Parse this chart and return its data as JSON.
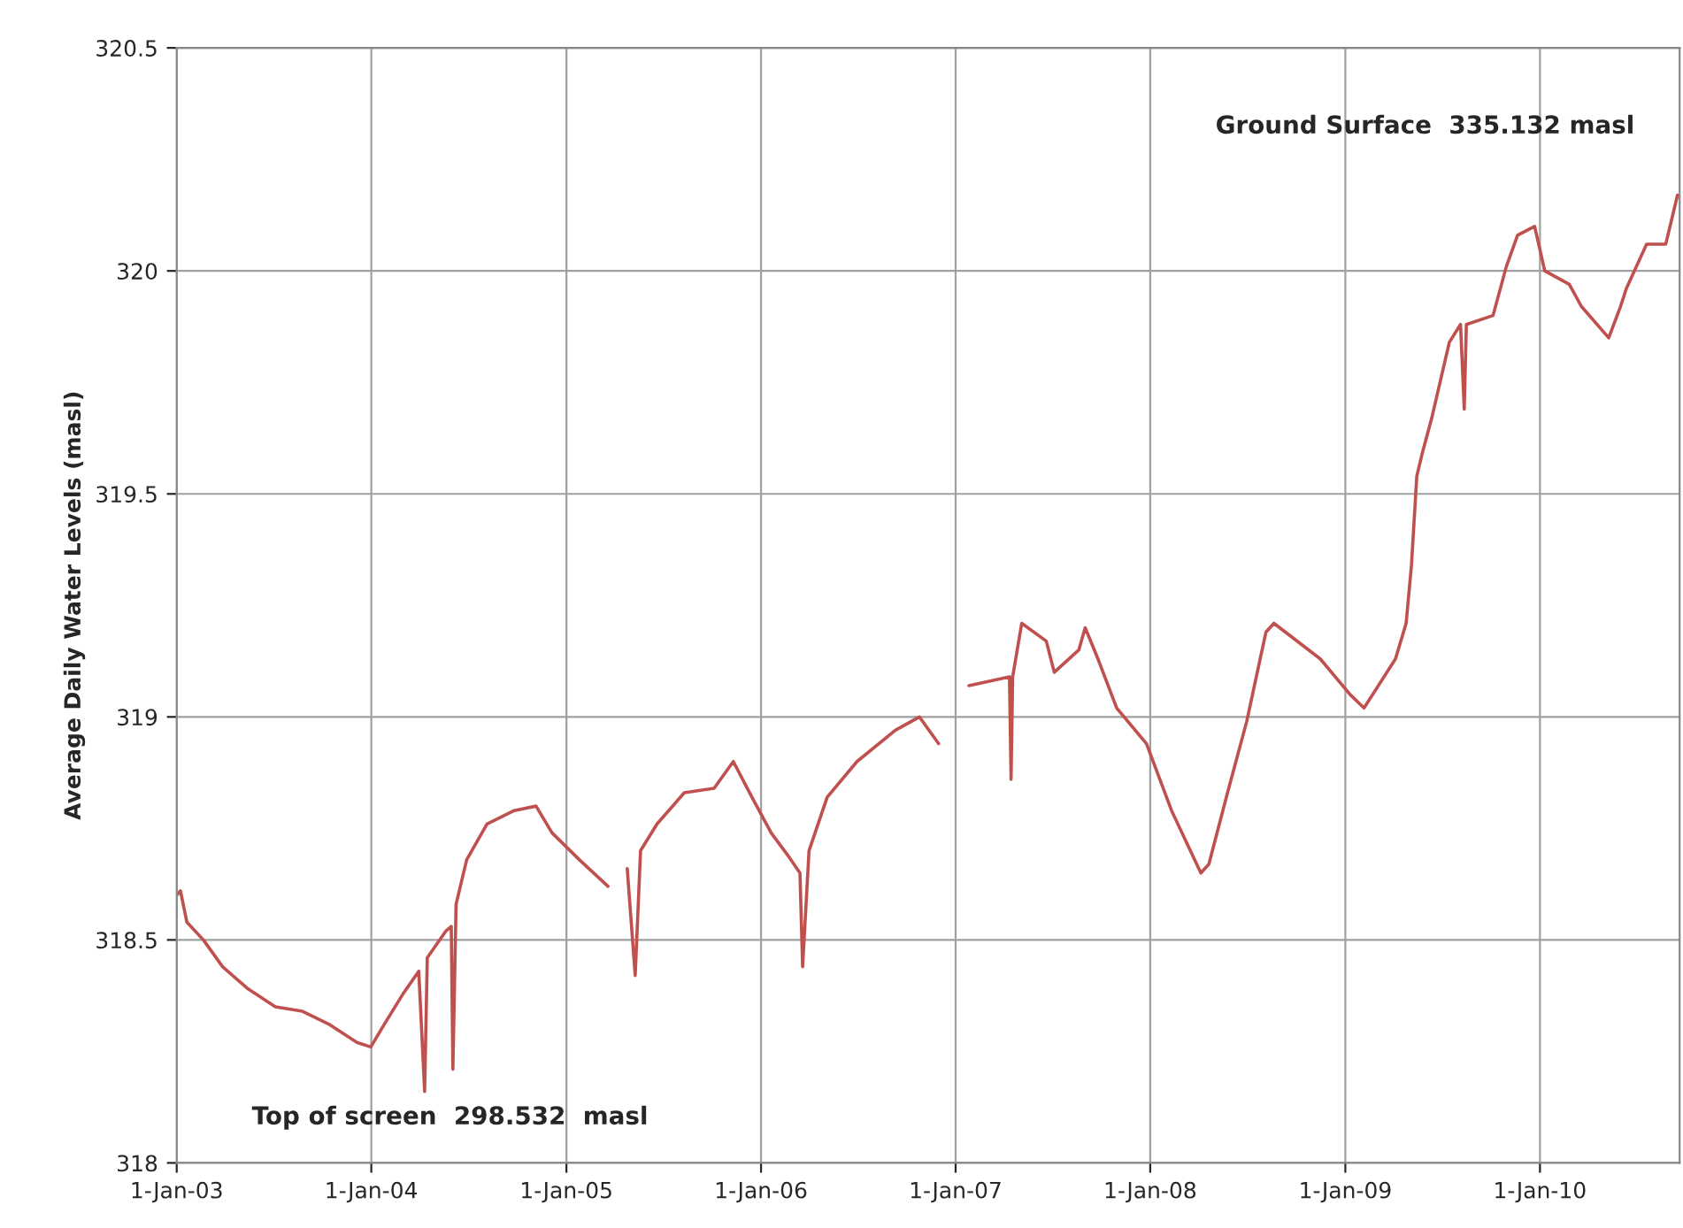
{
  "chart_data": {
    "type": "line",
    "ylabel": "Average Daily Water Levels (masl)",
    "annotations": [
      "Top of screen  298.532  masl",
      "Ground Surface  335.132 masl"
    ],
    "x": [
      "2003-01-01",
      "2003-01-08",
      "2003-01-20",
      "2003-02-20",
      "2003-03-28",
      "2003-05-15",
      "2003-07-05",
      "2003-08-25",
      "2003-10-15",
      "2003-12-05",
      "2003-12-31",
      "2004-01-25",
      "2004-03-01",
      "2004-03-30",
      "2004-04-10",
      "2004-04-15",
      "2004-05-20",
      "2004-05-30",
      "2004-06-02",
      "2004-06-08",
      "2004-06-28",
      "2004-08-05",
      "2004-09-25",
      "2004-11-05",
      "2004-12-05",
      "2005-01-25",
      "2005-03-20",
      "2005-04-05",
      "2005-04-25",
      "2005-05-10",
      "2005-05-20",
      "2005-06-20",
      "2005-08-10",
      "2005-10-05",
      "2005-11-10",
      "2005-12-15",
      "2006-01-20",
      "2006-02-20",
      "2006-03-15",
      "2006-03-20",
      "2006-04-01",
      "2006-05-05",
      "2006-06-30",
      "2006-09-10",
      "2006-10-25",
      "2006-11-30",
      "2006-12-30",
      "2007-01-26",
      "2007-04-12",
      "2007-04-15",
      "2007-04-18",
      "2007-05-05",
      "2007-06-20",
      "2007-07-05",
      "2007-08-20",
      "2007-09-01",
      "2007-09-25",
      "2007-10-30",
      "2007-12-25",
      "2008-02-10",
      "2008-04-05",
      "2008-04-20",
      "2008-05-25",
      "2008-06-30",
      "2008-08-05",
      "2008-08-20",
      "2008-11-15",
      "2009-01-10",
      "2009-02-05",
      "2009-04-05",
      "2009-04-25",
      "2009-05-05",
      "2009-05-15",
      "2009-05-25",
      "2009-06-12",
      "2009-07-15",
      "2009-08-05",
      "2009-08-12",
      "2009-08-16",
      "2009-10-05",
      "2009-10-30",
      "2009-11-20",
      "2009-12-22",
      "2010-01-10",
      "2010-02-25",
      "2010-03-20",
      "2010-05-10",
      "2010-06-01",
      "2010-06-12",
      "2010-07-20",
      "2010-08-25",
      "2010-09-16"
    ],
    "series": [
      {
        "color": "#c0504d",
        "values": [
          318.6,
          318.61,
          318.54,
          318.5,
          318.44,
          318.39,
          318.35,
          318.34,
          318.31,
          318.27,
          318.26,
          318.31,
          318.38,
          318.43,
          318.16,
          318.46,
          318.52,
          318.53,
          318.21,
          318.58,
          318.68,
          318.76,
          318.79,
          318.8,
          318.74,
          318.68,
          318.62,
          null,
          318.66,
          318.42,
          318.7,
          318.76,
          318.83,
          318.84,
          318.9,
          318.82,
          318.74,
          318.69,
          318.65,
          318.44,
          318.7,
          318.82,
          318.9,
          318.97,
          319.0,
          318.94,
          null,
          319.07,
          319.09,
          318.86,
          319.09,
          319.21,
          319.17,
          319.1,
          319.15,
          319.2,
          319.13,
          319.02,
          318.94,
          318.79,
          318.65,
          318.67,
          318.83,
          318.99,
          319.19,
          319.21,
          319.13,
          319.05,
          319.02,
          319.13,
          319.21,
          319.34,
          319.54,
          319.59,
          319.67,
          319.84,
          319.88,
          319.69,
          319.88,
          319.9,
          320.01,
          320.08,
          320.1,
          320.0,
          319.97,
          319.92,
          319.85,
          319.92,
          319.96,
          320.06,
          320.06,
          320.17
        ]
      }
    ],
    "xlim": [
      "2003-01-01",
      "2010-09-20"
    ],
    "xticks": [
      {
        "value": "2003-01-01",
        "label": "1-Jan-03"
      },
      {
        "value": "2004-01-01",
        "label": "1-Jan-04"
      },
      {
        "value": "2005-01-01",
        "label": "1-Jan-05"
      },
      {
        "value": "2006-01-01",
        "label": "1-Jan-06"
      },
      {
        "value": "2007-01-01",
        "label": "1-Jan-07"
      },
      {
        "value": "2008-01-01",
        "label": "1-Jan-08"
      },
      {
        "value": "2009-01-01",
        "label": "1-Jan-09"
      },
      {
        "value": "2010-01-01",
        "label": "1-Jan-10"
      }
    ],
    "ylim": [
      318,
      320.5
    ],
    "yticks": [
      318,
      318.5,
      319,
      319.5,
      320,
      320.5
    ],
    "grid": true,
    "line_style": "solid",
    "marker": "none"
  }
}
